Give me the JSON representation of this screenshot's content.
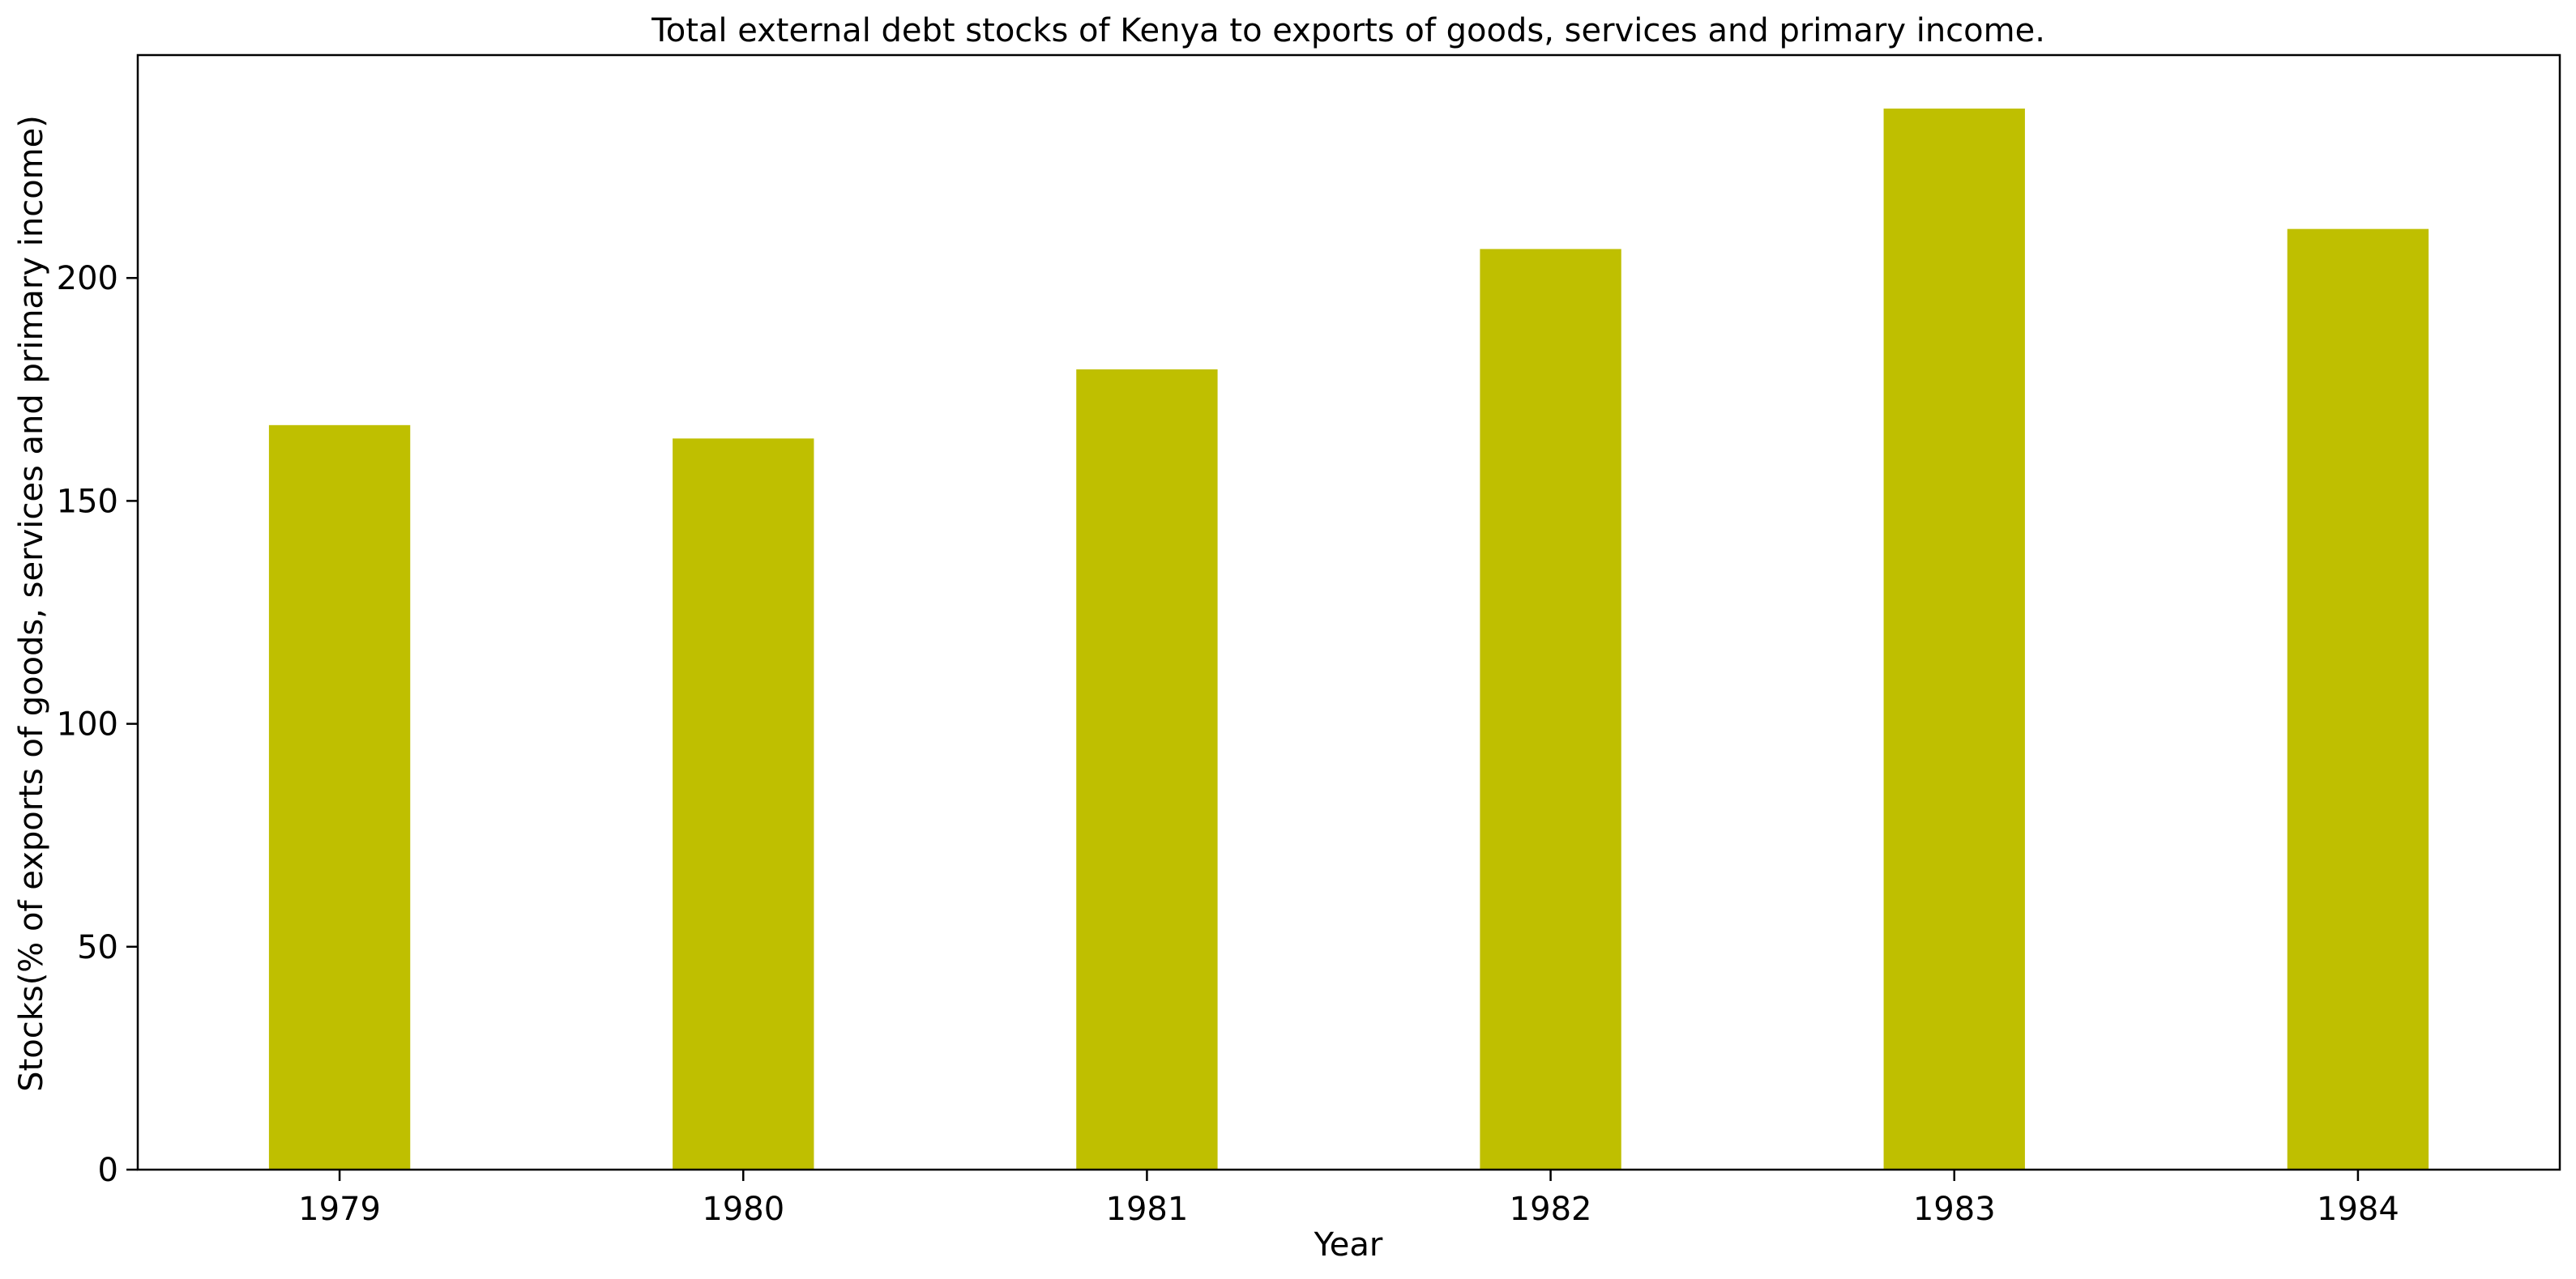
{
  "chart_data": {
    "type": "bar",
    "title": "Total external debt stocks of Kenya to exports of goods, services and primary income.",
    "xlabel": "Year",
    "ylabel": "Stocks(% of exports of goods, services and primary income)",
    "categories": [
      "1979",
      "1980",
      "1981",
      "1982",
      "1983",
      "1984"
    ],
    "values": [
      167,
      164,
      179.5,
      206.5,
      238,
      211
    ],
    "ylim": [
      0,
      250
    ],
    "yticks": [
      0,
      50,
      100,
      150,
      200
    ],
    "bar_color": "#bfbf00",
    "grid": false,
    "legend": "none"
  }
}
